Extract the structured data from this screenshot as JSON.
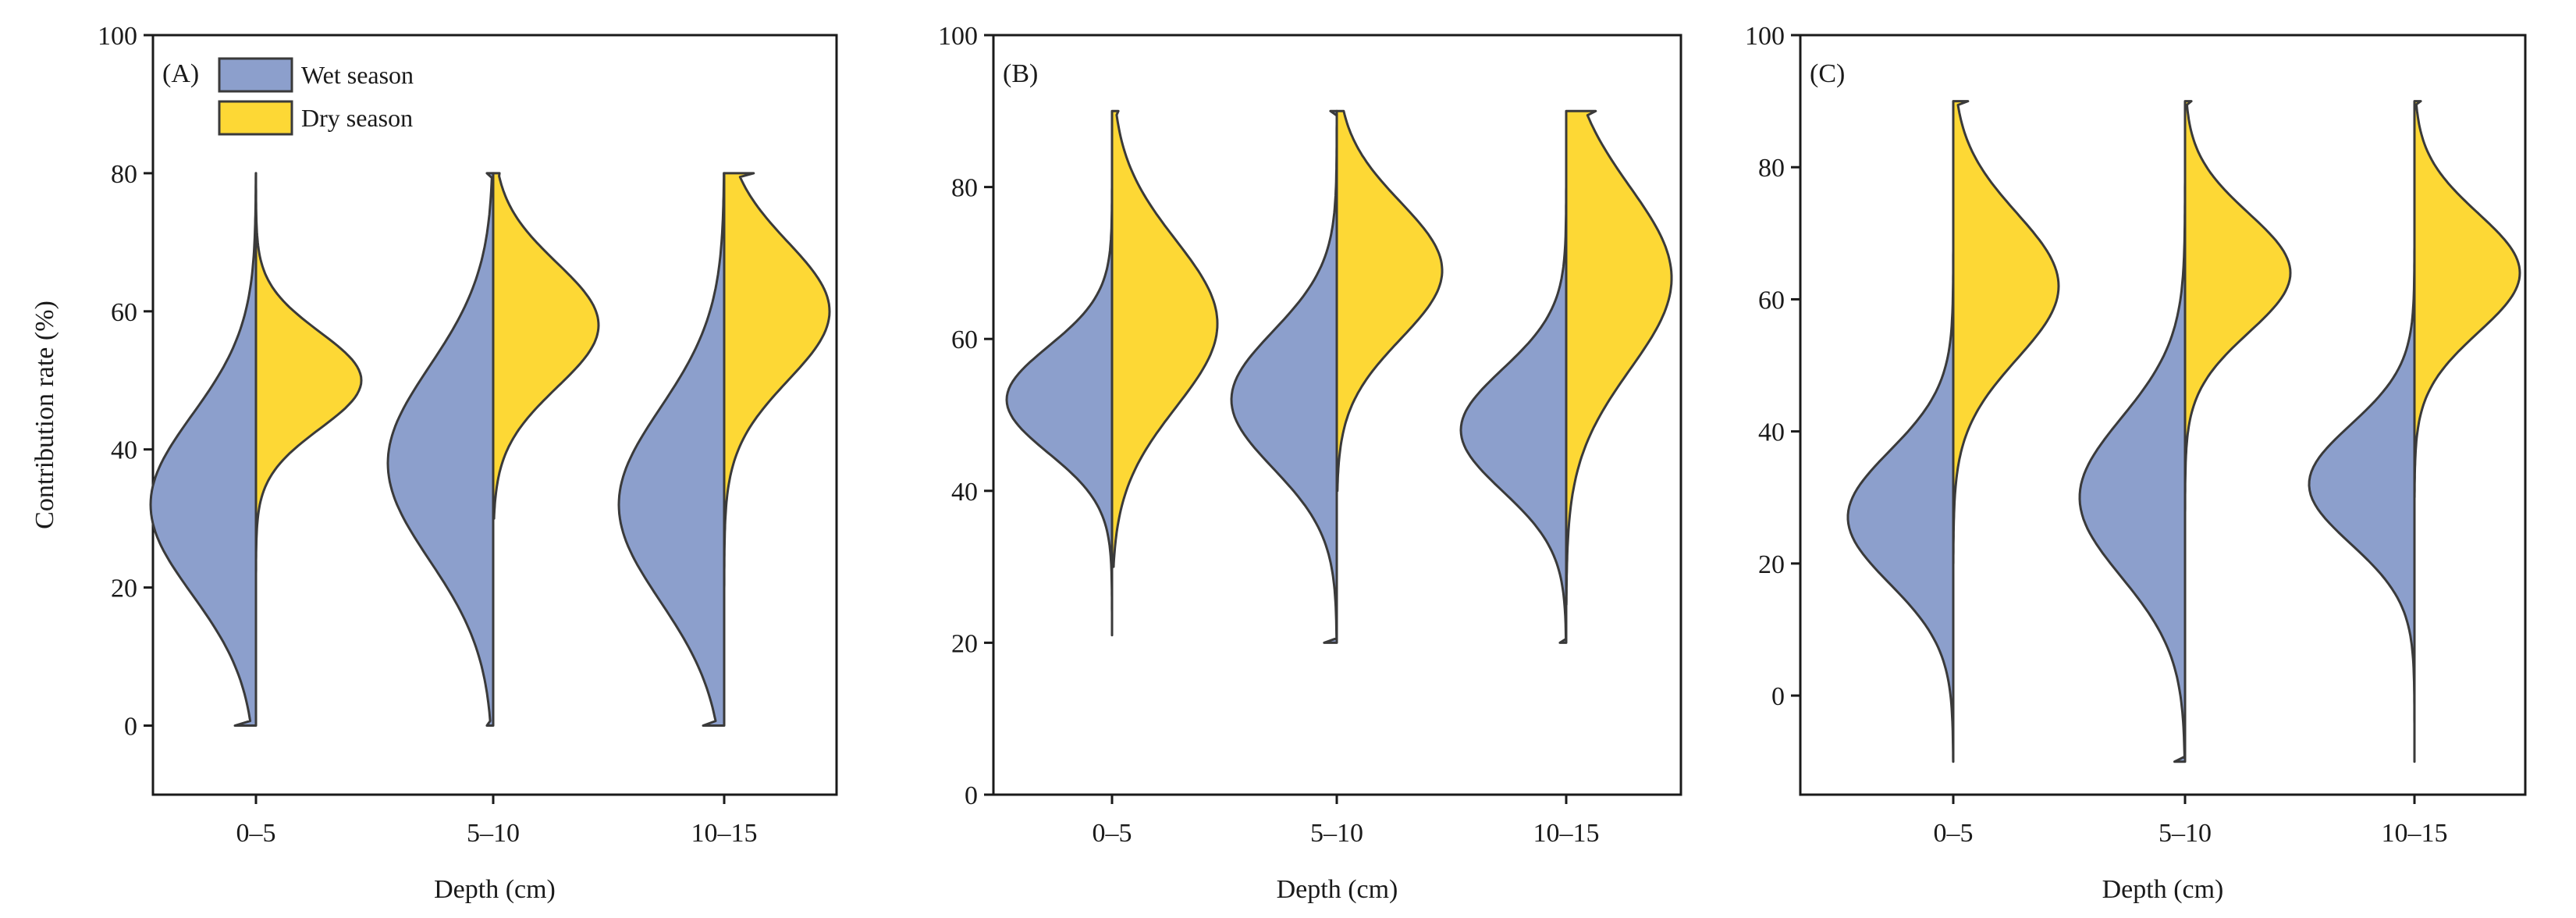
{
  "chart_data": [
    {
      "type": "split-violin",
      "panel_label": "(A)",
      "xlabel": "Depth (cm)",
      "ylabel": "Contribution rate (%)",
      "ylim": [
        -10,
        100
      ],
      "yticks": [
        0,
        20,
        40,
        60,
        80,
        100
      ],
      "categories": [
        "0–5",
        "5–10",
        "10–15"
      ],
      "legend": {
        "placement": "top-left",
        "entries": [
          {
            "name": "Wet season",
            "color": "#8c9fcc"
          },
          {
            "name": "Dry season",
            "color": "#fdd835"
          }
        ]
      },
      "series": [
        {
          "name": "Wet season",
          "color": "#8c9fcc",
          "side": "left",
          "violins": [
            {
              "min": 0,
              "max": 80,
              "mode": 32,
              "spread": 13,
              "peak_width": 0.36,
              "flat_bottom": 0.1
            },
            {
              "min": 0,
              "max": 80,
              "mode": 38,
              "spread": 14,
              "peak_width": 0.36,
              "flat_top": 0.03,
              "flat_bottom": 0.03
            },
            {
              "min": 0,
              "max": 80,
              "mode": 32,
              "spread": 14,
              "peak_width": 0.36,
              "flat_bottom": 0.1
            }
          ]
        },
        {
          "name": "Dry season",
          "color": "#fdd835",
          "side": "right",
          "violins": [
            {
              "min": 20,
              "max": 80,
              "mode": 50,
              "spread": 7,
              "peak_width": 0.36
            },
            {
              "min": 30,
              "max": 80,
              "mode": 58,
              "spread": 9,
              "peak_width": 0.36,
              "flat_top": 0.03
            },
            {
              "min": 15,
              "max": 80,
              "mode": 60,
              "spread": 10,
              "peak_width": 0.36,
              "flat_top": 0.14
            }
          ]
        }
      ]
    },
    {
      "type": "split-violin",
      "panel_label": "(B)",
      "xlabel": "Depth (cm)",
      "ylabel": "",
      "ylim": [
        0,
        100
      ],
      "yticks": [
        0,
        20,
        40,
        60,
        80,
        100
      ],
      "categories": [
        "0–5",
        "5–10",
        "10–15"
      ],
      "series": [
        {
          "name": "Wet season",
          "color": "#8c9fcc",
          "side": "left",
          "violins": [
            {
              "min": 21,
              "max": 80,
              "mode": 52,
              "spread": 7,
              "peak_width": 0.36
            },
            {
              "min": 20,
              "max": 90,
              "mode": 52,
              "spread": 9,
              "peak_width": 0.36,
              "flat_top": 0.03,
              "flat_bottom": 0.06
            },
            {
              "min": 20,
              "max": 80,
              "mode": 48,
              "spread": 8,
              "peak_width": 0.36,
              "flat_bottom": 0.03
            }
          ]
        },
        {
          "name": "Dry season",
          "color": "#fdd835",
          "side": "right",
          "violins": [
            {
              "min": 30,
              "max": 90,
              "mode": 62,
              "spread": 11,
              "peak_width": 0.36,
              "flat_top": 0.03
            },
            {
              "min": 40,
              "max": 90,
              "mode": 69,
              "spread": 9,
              "peak_width": 0.36,
              "flat_top": 0.03
            },
            {
              "min": 25,
              "max": 90,
              "mode": 68,
              "spread": 12,
              "peak_width": 0.36,
              "flat_top": 0.14
            }
          ]
        }
      ]
    },
    {
      "type": "split-violin",
      "panel_label": "(C)",
      "xlabel": "Depth (cm)",
      "ylabel": "",
      "ylim": [
        -15,
        100
      ],
      "yticks": [
        0,
        20,
        40,
        60,
        80,
        100
      ],
      "categories": [
        "0–5",
        "5–10",
        "10–15"
      ],
      "series": [
        {
          "name": "Wet season",
          "color": "#8c9fcc",
          "side": "left",
          "violins": [
            {
              "min": -10,
              "max": 70,
              "mode": 27,
              "spread": 10,
              "peak_width": 0.36
            },
            {
              "min": -10,
              "max": 80,
              "mode": 30,
              "spread": 12,
              "peak_width": 0.36,
              "flat_bottom": 0.05
            },
            {
              "min": -10,
              "max": 75,
              "mode": 32,
              "spread": 9,
              "peak_width": 0.36
            }
          ]
        },
        {
          "name": "Dry season",
          "color": "#fdd835",
          "side": "right",
          "violins": [
            {
              "min": 20,
              "max": 90,
              "mode": 62,
              "spread": 11,
              "peak_width": 0.36,
              "flat_top": 0.07
            },
            {
              "min": 25,
              "max": 90,
              "mode": 64,
              "spread": 9,
              "peak_width": 0.36,
              "flat_top": 0.03
            },
            {
              "min": 30,
              "max": 90,
              "mode": 64,
              "spread": 9,
              "peak_width": 0.36,
              "flat_top": 0.03
            }
          ]
        }
      ]
    }
  ]
}
